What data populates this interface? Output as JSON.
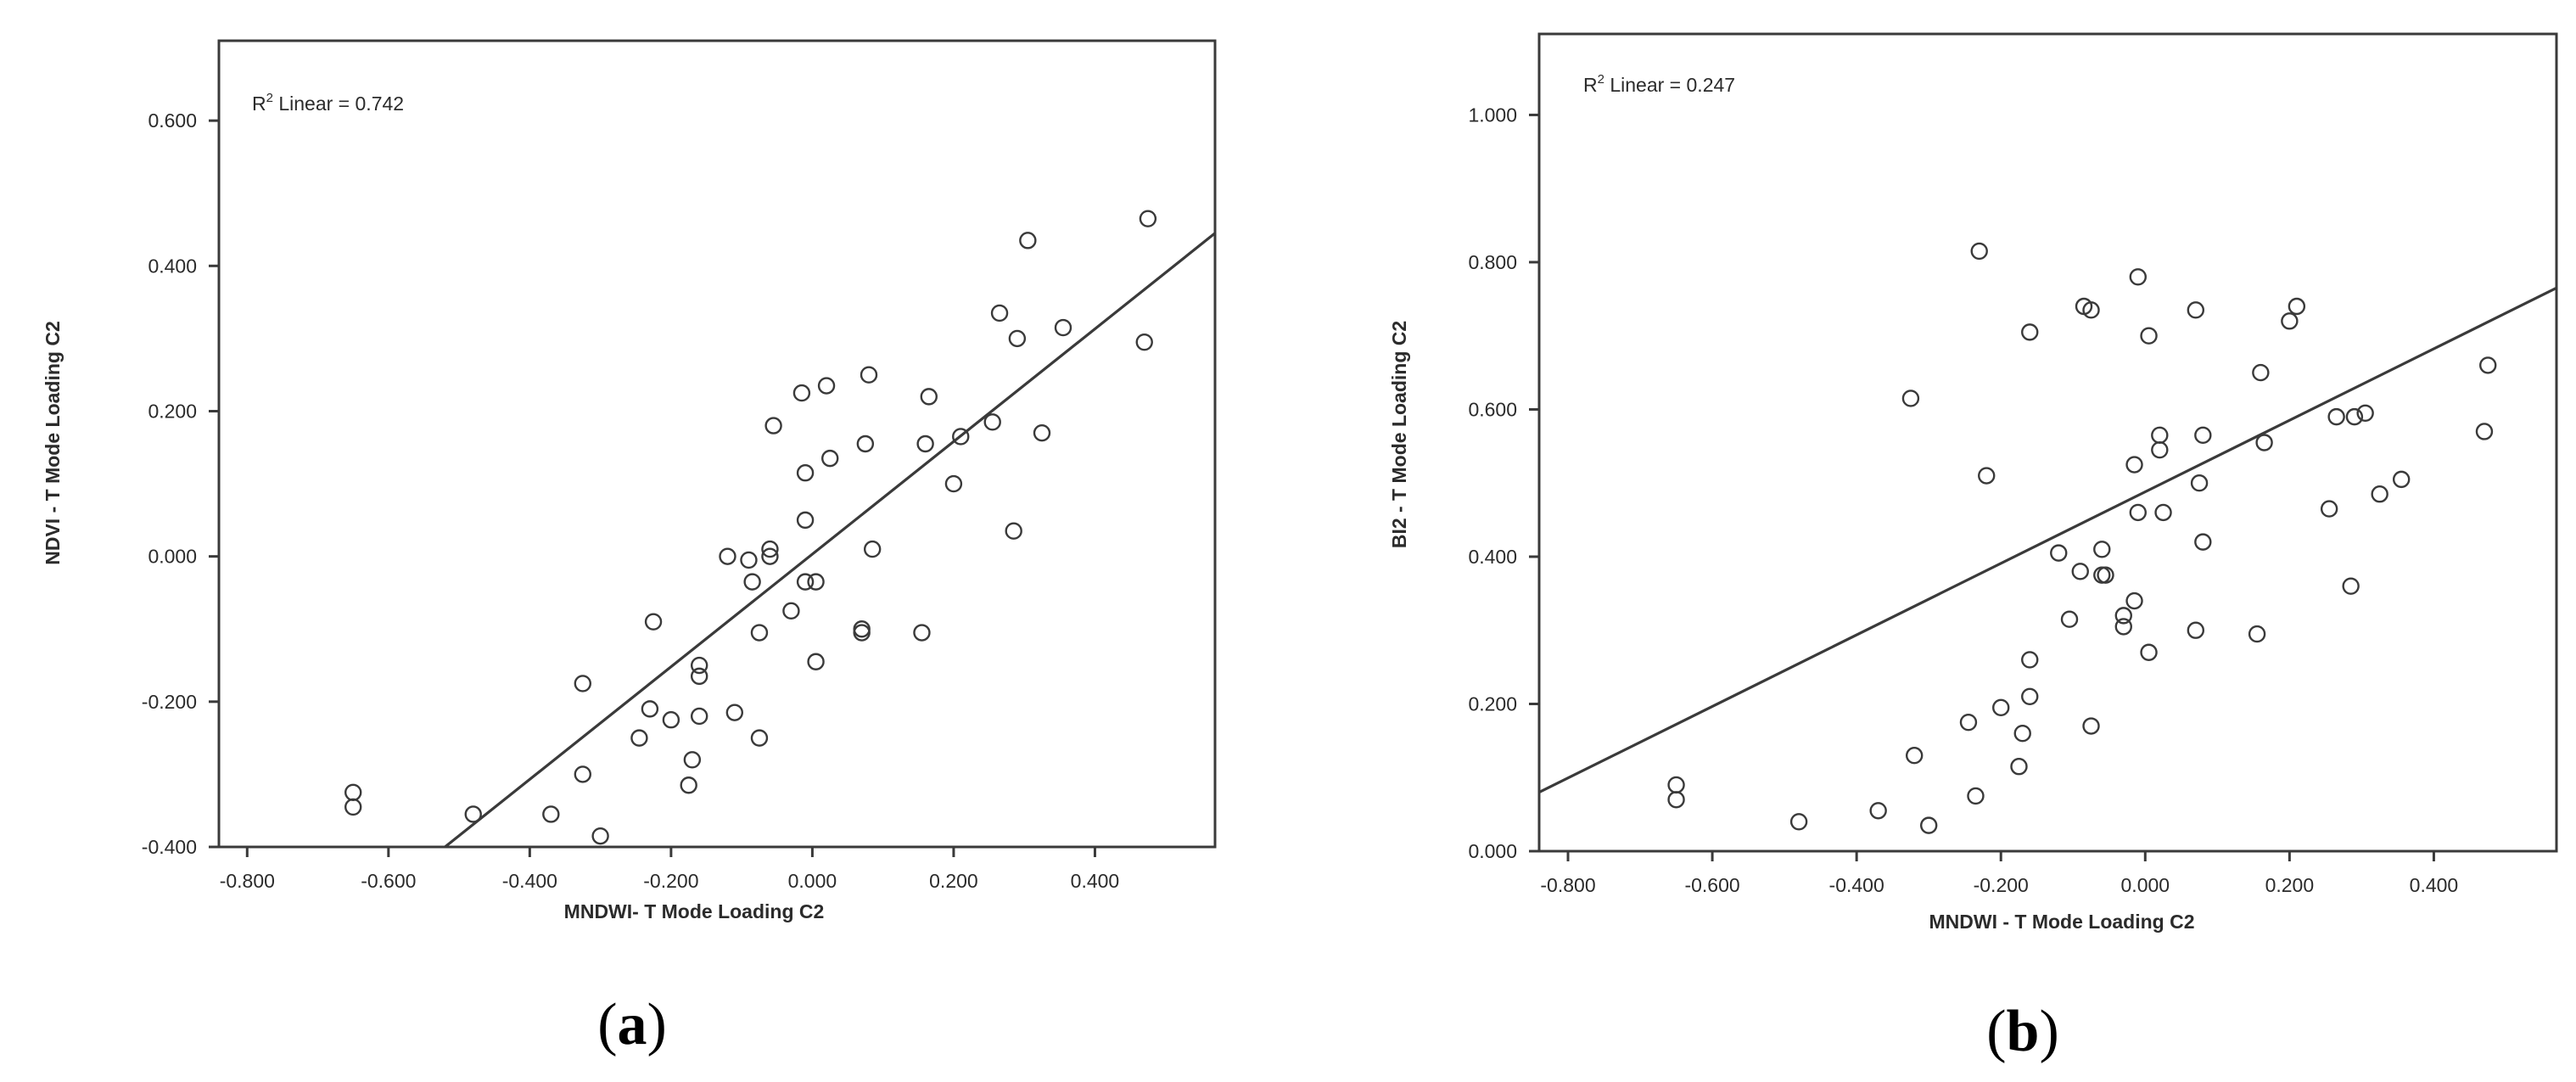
{
  "chart_data": [
    {
      "type": "scatter",
      "panel_label": "a",
      "annotation": {
        "prefix": "R",
        "sup": "2",
        "suffix": " Linear = 0.742"
      },
      "xlabel": "MNDWI- T Mode Loading C2",
      "ylabel": "NDVI - T Mode Loading C2",
      "xlim": [
        -0.84,
        0.57
      ],
      "ylim": [
        -0.4,
        0.71
      ],
      "x_ticks": [
        "-0.800",
        "-0.600",
        "-0.400",
        "-0.200",
        "0.000",
        "0.200",
        "0.400"
      ],
      "y_ticks": [
        "-0.400",
        "-0.200",
        "0.000",
        "0.200",
        "0.400",
        "0.600"
      ],
      "fit_line": {
        "x": [
          -0.52,
          0.57
        ],
        "y": [
          -0.4,
          0.445
        ]
      },
      "points": [
        [
          -0.65,
          -0.325
        ],
        [
          -0.65,
          -0.345
        ],
        [
          -0.48,
          -0.355
        ],
        [
          -0.37,
          -0.355
        ],
        [
          -0.3,
          -0.385
        ],
        [
          -0.325,
          -0.175
        ],
        [
          -0.325,
          -0.3
        ],
        [
          -0.245,
          -0.25
        ],
        [
          -0.23,
          -0.21
        ],
        [
          -0.225,
          -0.09
        ],
        [
          -0.2,
          -0.225
        ],
        [
          -0.175,
          -0.315
        ],
        [
          -0.17,
          -0.28
        ],
        [
          -0.16,
          -0.15
        ],
        [
          -0.16,
          -0.165
        ],
        [
          -0.16,
          -0.22
        ],
        [
          -0.11,
          -0.215
        ],
        [
          -0.12,
          0.0
        ],
        [
          -0.09,
          -0.005
        ],
        [
          -0.085,
          -0.035
        ],
        [
          -0.075,
          -0.105
        ],
        [
          -0.075,
          -0.25
        ],
        [
          -0.06,
          0.01
        ],
        [
          -0.06,
          0.0
        ],
        [
          -0.055,
          0.18
        ],
        [
          -0.03,
          -0.075
        ],
        [
          -0.015,
          0.225
        ],
        [
          -0.01,
          0.115
        ],
        [
          -0.01,
          0.05
        ],
        [
          -0.01,
          -0.035
        ],
        [
          0.005,
          -0.035
        ],
        [
          0.005,
          -0.145
        ],
        [
          0.02,
          0.235
        ],
        [
          0.025,
          0.135
        ],
        [
          0.07,
          -0.1
        ],
        [
          0.07,
          -0.105
        ],
        [
          0.075,
          0.155
        ],
        [
          0.08,
          0.25
        ],
        [
          0.085,
          0.01
        ],
        [
          0.155,
          -0.105
        ],
        [
          0.16,
          0.155
        ],
        [
          0.165,
          0.22
        ],
        [
          0.2,
          0.1
        ],
        [
          0.21,
          0.165
        ],
        [
          0.255,
          0.185
        ],
        [
          0.265,
          0.335
        ],
        [
          0.285,
          0.035
        ],
        [
          0.29,
          0.3
        ],
        [
          0.305,
          0.435
        ],
        [
          0.325,
          0.17
        ],
        [
          0.355,
          0.315
        ],
        [
          0.47,
          0.295
        ],
        [
          0.475,
          0.465
        ]
      ]
    },
    {
      "type": "scatter",
      "panel_label": "b",
      "annotation": {
        "prefix": "R",
        "sup": "2",
        "suffix": " Linear = 0.247"
      },
      "xlabel": "MNDWI - T Mode Loading C2",
      "ylabel": "BI2 - T Mode Loading C2",
      "xlim": [
        -0.84,
        0.57
      ],
      "ylim": [
        0.0,
        1.11
      ],
      "x_ticks": [
        "-0.800",
        "-0.600",
        "-0.400",
        "-0.200",
        "0.000",
        "0.200",
        "0.400"
      ],
      "y_ticks": [
        "0.000",
        "0.200",
        "0.400",
        "0.600",
        "0.800",
        "1.000"
      ],
      "fit_line": {
        "x": [
          -0.84,
          0.57
        ],
        "y": [
          0.08,
          0.765
        ]
      },
      "points": [
        [
          -0.65,
          0.09
        ],
        [
          -0.65,
          0.07
        ],
        [
          -0.48,
          0.04
        ],
        [
          -0.37,
          0.055
        ],
        [
          -0.3,
          0.035
        ],
        [
          -0.325,
          0.615
        ],
        [
          -0.32,
          0.13
        ],
        [
          -0.245,
          0.175
        ],
        [
          -0.235,
          0.075
        ],
        [
          -0.23,
          0.815
        ],
        [
          -0.22,
          0.51
        ],
        [
          -0.2,
          0.195
        ],
        [
          -0.175,
          0.115
        ],
        [
          -0.17,
          0.16
        ],
        [
          -0.16,
          0.705
        ],
        [
          -0.16,
          0.21
        ],
        [
          -0.16,
          0.26
        ],
        [
          -0.12,
          0.405
        ],
        [
          -0.105,
          0.315
        ],
        [
          -0.09,
          0.38
        ],
        [
          -0.085,
          0.74
        ],
        [
          -0.075,
          0.735
        ],
        [
          -0.075,
          0.17
        ],
        [
          -0.06,
          0.375
        ],
        [
          -0.06,
          0.41
        ],
        [
          -0.055,
          0.375
        ],
        [
          -0.03,
          0.305
        ],
        [
          -0.03,
          0.32
        ],
        [
          -0.015,
          0.525
        ],
        [
          -0.015,
          0.34
        ],
        [
          -0.01,
          0.78
        ],
        [
          -0.01,
          0.46
        ],
        [
          0.005,
          0.7
        ],
        [
          0.005,
          0.27
        ],
        [
          0.02,
          0.565
        ],
        [
          0.02,
          0.545
        ],
        [
          0.025,
          0.46
        ],
        [
          0.07,
          0.735
        ],
        [
          0.07,
          0.3
        ],
        [
          0.075,
          0.5
        ],
        [
          0.08,
          0.565
        ],
        [
          0.08,
          0.42
        ],
        [
          0.155,
          0.295
        ],
        [
          0.16,
          0.65
        ],
        [
          0.165,
          0.555
        ],
        [
          0.2,
          0.72
        ],
        [
          0.21,
          0.74
        ],
        [
          0.255,
          0.465
        ],
        [
          0.265,
          0.59
        ],
        [
          0.285,
          0.36
        ],
        [
          0.29,
          0.59
        ],
        [
          0.305,
          0.595
        ],
        [
          0.325,
          0.485
        ],
        [
          0.355,
          0.505
        ],
        [
          0.47,
          0.57
        ],
        [
          0.475,
          0.66
        ]
      ]
    }
  ]
}
